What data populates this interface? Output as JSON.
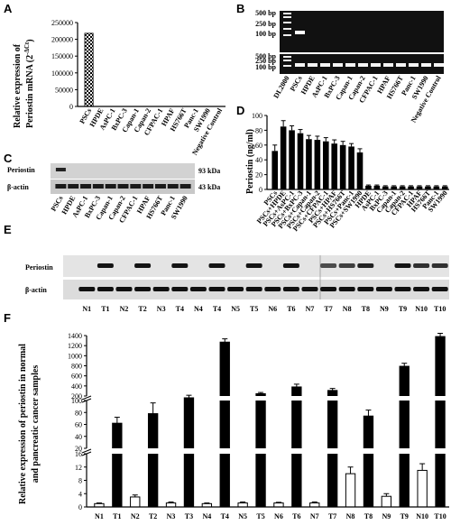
{
  "panels": {
    "A": {
      "label": "A",
      "chart_data": {
        "type": "bar",
        "ylabel_line1": "Relative expression of",
        "ylabel_line2": "Periostin mRNA (2",
        "ylabel_sup": "-ΔCt",
        "ylabel_end": ")",
        "ylim": [
          0,
          250000
        ],
        "yticks": [
          "0",
          "50000",
          "100000",
          "150000",
          "200000",
          "250000"
        ],
        "categories": [
          "PSCs",
          "HPDE",
          "AsPC-1",
          "BxPC-3",
          "Capan-1",
          "Capan-2",
          "CFPAC-1",
          "HPAF",
          "HS766T",
          "Panc-1",
          "SW1990",
          "Negative Control"
        ],
        "values": [
          218000,
          0,
          0,
          0,
          0,
          0,
          0,
          0,
          0,
          0,
          0,
          0
        ]
      }
    },
    "B": {
      "label": "B",
      "markers": [
        "500 bp",
        "250 bp",
        "100 bp",
        "500 bp",
        "250 bp",
        "100 bp"
      ],
      "lanes": [
        "DL2000",
        "PSCs",
        "HPDE",
        "AsPC-1",
        "BxPC-3",
        "Capan-1",
        "Capan-2",
        "CFPAC-1",
        "HPAF",
        "HS766T",
        "Panc-1",
        "SW1990",
        "Negative Control"
      ]
    },
    "C": {
      "label": "C",
      "rows": [
        "Periostin",
        "β-actin"
      ],
      "sizes": [
        "93 kDa",
        "43 kDa"
      ],
      "lanes": [
        "PSCs",
        "HPDE",
        "AsPC-1",
        "BxPC-3",
        "Capan-1",
        "Capan-2",
        "CFPAC-1",
        "HPAF",
        "HS766T",
        "Panc-1",
        "SW1990"
      ]
    },
    "D": {
      "label": "D",
      "chart_data": {
        "type": "bar",
        "ylabel": "Periostin (ng/ml)",
        "ylim": [
          0,
          100
        ],
        "yticks": [
          "0",
          "20",
          "40",
          "60",
          "80",
          "100"
        ],
        "categories": [
          "PSCs",
          "PSCs+HPDE",
          "PSCs+AsPC-1",
          "PSCs+BxPC-3",
          "PSCs+Capan-1",
          "PSCs+Capan-2",
          "PSCs+CFPAC-1",
          "PSCs+HPAF",
          "PSCs+HS766T",
          "PSCs+Panc-1",
          "PSCs+SW1990",
          "HPDE",
          "AsPC-1",
          "BxPC-3",
          "Capan-1",
          "Capan-2",
          "CFPAC-1",
          "HPAF",
          "HS766T",
          "Panc-1",
          "SW1990"
        ],
        "values": [
          52,
          85,
          80,
          76,
          68,
          67,
          65,
          62,
          60,
          58,
          50,
          5,
          5,
          4,
          4,
          4,
          4,
          4,
          4,
          4,
          4
        ],
        "errors": [
          8,
          8,
          6,
          5,
          5,
          5,
          5,
          5,
          5,
          4,
          5,
          1,
          1,
          1,
          1,
          1,
          1,
          1,
          1,
          1,
          1
        ]
      }
    },
    "E": {
      "label": "E",
      "rows": [
        "Periostin",
        "β-actin"
      ],
      "lanes": [
        "N1",
        "T1",
        "N2",
        "T2",
        "N3",
        "T4",
        "N4",
        "T4",
        "N5",
        "T5",
        "N6",
        "T6",
        "N7",
        "T7",
        "N8",
        "T8",
        "N9",
        "T9",
        "N10",
        "T10"
      ]
    },
    "F": {
      "label": "F",
      "chart_data": {
        "type": "bar",
        "ylabel_line1": "Relative expression of periostin in normal",
        "ylabel_line2": "and pancreatic cancer samples",
        "broken_axis": true,
        "yticks_low": [
          "0",
          "4",
          "8",
          "12",
          "16"
        ],
        "yticks_mid": [
          "20",
          "40",
          "60",
          "80",
          "100"
        ],
        "yticks_high": [
          "200",
          "400",
          "600",
          "800",
          "1000",
          "1200",
          "1400"
        ],
        "categories": [
          "N1",
          "T1",
          "N2",
          "T2",
          "N3",
          "T3",
          "N4",
          "T4",
          "N5",
          "T5",
          "N6",
          "T6",
          "N7",
          "T7",
          "N8",
          "T8",
          "N9",
          "T9",
          "N10",
          "T10"
        ],
        "values": [
          1,
          62,
          3,
          78,
          1.2,
          180,
          1,
          1270,
          1.2,
          245,
          1.2,
          380,
          1.2,
          310,
          10,
          74,
          3.2,
          790,
          11,
          1380
        ],
        "errors": [
          0.2,
          10,
          0.6,
          18,
          0.3,
          35,
          0.2,
          65,
          0.3,
          25,
          0.2,
          55,
          0.3,
          40,
          2,
          10,
          0.8,
          60,
          2,
          65
        ],
        "series_colors": {
          "normal": "#ffffff",
          "tumor": "#000000"
        }
      }
    }
  }
}
